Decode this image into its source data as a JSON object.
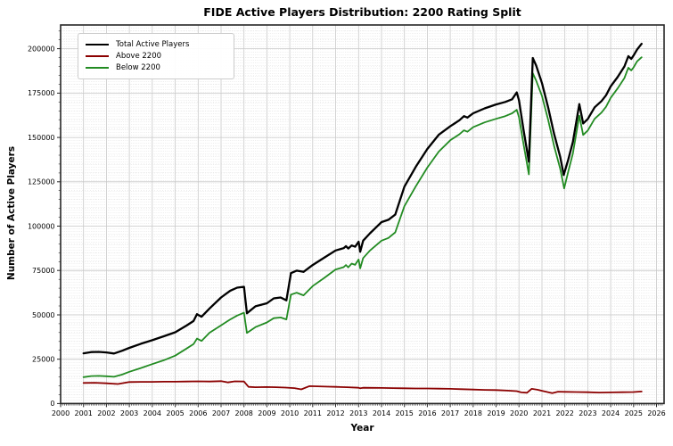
{
  "chart_data": {
    "type": "line",
    "title": "FIDE Active Players Distribution: 2200 Rating Split",
    "xlabel": "Year",
    "ylabel": "Number of Active Players",
    "xlim": [
      2000,
      2026.33
    ],
    "ylim": [
      0,
      213400
    ],
    "grid": {
      "major": true,
      "minor": true
    },
    "legend_position": "upper left",
    "x_tick_labels": [
      "2000",
      "2001",
      "2002",
      "2003",
      "2004",
      "2005",
      "2006",
      "2007",
      "2008",
      "2009",
      "2010",
      "2011",
      "2012",
      "2013",
      "2014",
      "2015",
      "2016",
      "2017",
      "2018",
      "2019",
      "2020",
      "2021",
      "2022",
      "2023",
      "2024",
      "2025",
      "2026"
    ],
    "y_tick_labels": [
      "0",
      "25000",
      "50000",
      "75000",
      "100000",
      "125000",
      "150000",
      "175000",
      "200000"
    ],
    "series": [
      {
        "name": "Total Active Players",
        "color": "#000000",
        "line_width": 2.3,
        "points": [
          [
            2001.0,
            28300
          ],
          [
            2001.33,
            29000
          ],
          [
            2001.67,
            29100
          ],
          [
            2002.0,
            28800
          ],
          [
            2002.33,
            28200
          ],
          [
            2002.67,
            29700
          ],
          [
            2003.0,
            31400
          ],
          [
            2003.5,
            33700
          ],
          [
            2004.0,
            35700
          ],
          [
            2004.5,
            37900
          ],
          [
            2005.0,
            40200
          ],
          [
            2005.5,
            44000
          ],
          [
            2005.8,
            46500
          ],
          [
            2005.95,
            50400
          ],
          [
            2006.15,
            48900
          ],
          [
            2006.5,
            53600
          ],
          [
            2007.0,
            59800
          ],
          [
            2007.4,
            63600
          ],
          [
            2007.7,
            65300
          ],
          [
            2008.0,
            65800
          ],
          [
            2008.13,
            50900
          ],
          [
            2008.5,
            54800
          ],
          [
            2009.0,
            56500
          ],
          [
            2009.3,
            59300
          ],
          [
            2009.6,
            59800
          ],
          [
            2009.85,
            58200
          ],
          [
            2010.05,
            73500
          ],
          [
            2010.3,
            74900
          ],
          [
            2010.6,
            74200
          ],
          [
            2011.0,
            78100
          ],
          [
            2011.5,
            82200
          ],
          [
            2012.0,
            86300
          ],
          [
            2012.35,
            87600
          ],
          [
            2012.45,
            88700
          ],
          [
            2012.55,
            87400
          ],
          [
            2012.7,
            89100
          ],
          [
            2012.85,
            88400
          ],
          [
            2013.0,
            91200
          ],
          [
            2013.07,
            85600
          ],
          [
            2013.2,
            91800
          ],
          [
            2013.5,
            96000
          ],
          [
            2014.0,
            102300
          ],
          [
            2014.3,
            103600
          ],
          [
            2014.6,
            106500
          ],
          [
            2015.0,
            122300
          ],
          [
            2015.5,
            133500
          ],
          [
            2016.0,
            143500
          ],
          [
            2016.5,
            151500
          ],
          [
            2017.0,
            156300
          ],
          [
            2017.4,
            159700
          ],
          [
            2017.6,
            162000
          ],
          [
            2017.75,
            161200
          ],
          [
            2018.0,
            163600
          ],
          [
            2018.5,
            166400
          ],
          [
            2019.0,
            168600
          ],
          [
            2019.4,
            170000
          ],
          [
            2019.7,
            171500
          ],
          [
            2019.9,
            175400
          ],
          [
            2020.0,
            171000
          ],
          [
            2020.2,
            154000
          ],
          [
            2020.43,
            136300
          ],
          [
            2020.6,
            194800
          ],
          [
            2020.75,
            190500
          ],
          [
            2021.0,
            180600
          ],
          [
            2021.27,
            167000
          ],
          [
            2021.53,
            152000
          ],
          [
            2021.8,
            139000
          ],
          [
            2021.95,
            128800
          ],
          [
            2022.15,
            137500
          ],
          [
            2022.35,
            147500
          ],
          [
            2022.63,
            168800
          ],
          [
            2022.8,
            157900
          ],
          [
            2023.0,
            160400
          ],
          [
            2023.3,
            167000
          ],
          [
            2023.6,
            170500
          ],
          [
            2023.8,
            173800
          ],
          [
            2024.0,
            178800
          ],
          [
            2024.3,
            184000
          ],
          [
            2024.6,
            190000
          ],
          [
            2024.77,
            195800
          ],
          [
            2024.9,
            194300
          ],
          [
            2025.0,
            196200
          ],
          [
            2025.15,
            199500
          ],
          [
            2025.35,
            202800
          ]
        ]
      },
      {
        "name": "Above 2200",
        "color": "#8B0000",
        "line_width": 1.8,
        "points": [
          [
            2001.0,
            11600
          ],
          [
            2001.5,
            11700
          ],
          [
            2002.0,
            11400
          ],
          [
            2002.5,
            11000
          ],
          [
            2003.0,
            12100
          ],
          [
            2003.5,
            12200
          ],
          [
            2004.0,
            12200
          ],
          [
            2004.5,
            12300
          ],
          [
            2005.0,
            12300
          ],
          [
            2005.5,
            12400
          ],
          [
            2006.0,
            12500
          ],
          [
            2006.5,
            12400
          ],
          [
            2007.0,
            12600
          ],
          [
            2007.3,
            11900
          ],
          [
            2007.6,
            12500
          ],
          [
            2008.0,
            12400
          ],
          [
            2008.2,
            9400
          ],
          [
            2008.5,
            9200
          ],
          [
            2009.0,
            9300
          ],
          [
            2009.4,
            9200
          ],
          [
            2009.8,
            9000
          ],
          [
            2010.2,
            8700
          ],
          [
            2010.5,
            8000
          ],
          [
            2010.85,
            9800
          ],
          [
            2011.2,
            9700
          ],
          [
            2011.7,
            9500
          ],
          [
            2012.0,
            9400
          ],
          [
            2012.5,
            9200
          ],
          [
            2013.0,
            8900
          ],
          [
            2013.07,
            8600
          ],
          [
            2013.2,
            8900
          ],
          [
            2014.0,
            8800
          ],
          [
            2014.5,
            8700
          ],
          [
            2015.0,
            8600
          ],
          [
            2015.5,
            8500
          ],
          [
            2016.0,
            8500
          ],
          [
            2016.5,
            8400
          ],
          [
            2017.0,
            8300
          ],
          [
            2017.5,
            8100
          ],
          [
            2018.0,
            7900
          ],
          [
            2018.5,
            7700
          ],
          [
            2019.0,
            7600
          ],
          [
            2019.5,
            7300
          ],
          [
            2019.9,
            7000
          ],
          [
            2020.1,
            6300
          ],
          [
            2020.35,
            6100
          ],
          [
            2020.55,
            8300
          ],
          [
            2020.8,
            7800
          ],
          [
            2021.0,
            7200
          ],
          [
            2021.45,
            5900
          ],
          [
            2021.7,
            6700
          ],
          [
            2022.0,
            6600
          ],
          [
            2022.5,
            6500
          ],
          [
            2023.0,
            6400
          ],
          [
            2023.5,
            6200
          ],
          [
            2024.0,
            6300
          ],
          [
            2024.5,
            6400
          ],
          [
            2025.0,
            6500
          ],
          [
            2025.35,
            6800
          ]
        ]
      },
      {
        "name": "Below 2200",
        "color": "#228B22",
        "line_width": 1.8,
        "points": [
          [
            2001.0,
            14900
          ],
          [
            2001.33,
            15500
          ],
          [
            2001.67,
            15600
          ],
          [
            2002.0,
            15400
          ],
          [
            2002.33,
            15100
          ],
          [
            2002.67,
            16300
          ],
          [
            2003.0,
            17900
          ],
          [
            2003.5,
            20000
          ],
          [
            2004.0,
            22200
          ],
          [
            2004.5,
            24400
          ],
          [
            2005.0,
            27000
          ],
          [
            2005.5,
            31000
          ],
          [
            2005.8,
            33500
          ],
          [
            2005.95,
            36600
          ],
          [
            2006.15,
            35300
          ],
          [
            2006.5,
            39900
          ],
          [
            2007.0,
            44100
          ],
          [
            2007.4,
            47400
          ],
          [
            2007.7,
            49600
          ],
          [
            2008.0,
            51200
          ],
          [
            2008.13,
            39800
          ],
          [
            2008.5,
            43100
          ],
          [
            2009.0,
            45700
          ],
          [
            2009.3,
            48100
          ],
          [
            2009.6,
            48500
          ],
          [
            2009.85,
            47400
          ],
          [
            2010.05,
            61400
          ],
          [
            2010.3,
            62500
          ],
          [
            2010.6,
            61000
          ],
          [
            2011.0,
            66200
          ],
          [
            2011.5,
            70800
          ],
          [
            2012.0,
            75600
          ],
          [
            2012.35,
            76900
          ],
          [
            2012.45,
            78100
          ],
          [
            2012.55,
            76800
          ],
          [
            2012.7,
            78900
          ],
          [
            2012.85,
            78200
          ],
          [
            2013.0,
            81200
          ],
          [
            2013.07,
            76200
          ],
          [
            2013.2,
            82000
          ],
          [
            2013.5,
            86300
          ],
          [
            2014.0,
            91800
          ],
          [
            2014.3,
            93300
          ],
          [
            2014.6,
            96500
          ],
          [
            2015.0,
            111300
          ],
          [
            2015.5,
            122500
          ],
          [
            2016.0,
            133000
          ],
          [
            2016.5,
            142000
          ],
          [
            2017.0,
            148400
          ],
          [
            2017.4,
            151800
          ],
          [
            2017.6,
            154000
          ],
          [
            2017.75,
            153200
          ],
          [
            2018.0,
            155800
          ],
          [
            2018.5,
            158500
          ],
          [
            2019.0,
            160500
          ],
          [
            2019.4,
            162000
          ],
          [
            2019.7,
            163600
          ],
          [
            2019.9,
            165600
          ],
          [
            2020.0,
            161500
          ],
          [
            2020.2,
            146000
          ],
          [
            2020.43,
            129200
          ],
          [
            2020.6,
            186200
          ],
          [
            2020.75,
            182000
          ],
          [
            2021.0,
            173400
          ],
          [
            2021.27,
            160000
          ],
          [
            2021.53,
            145200
          ],
          [
            2021.8,
            132300
          ],
          [
            2021.97,
            121300
          ],
          [
            2022.15,
            130800
          ],
          [
            2022.35,
            141000
          ],
          [
            2022.63,
            162300
          ],
          [
            2022.8,
            151400
          ],
          [
            2023.0,
            153900
          ],
          [
            2023.3,
            160500
          ],
          [
            2023.6,
            164000
          ],
          [
            2023.8,
            167300
          ],
          [
            2024.0,
            172300
          ],
          [
            2024.3,
            177600
          ],
          [
            2024.6,
            183500
          ],
          [
            2024.77,
            189300
          ],
          [
            2024.9,
            187800
          ],
          [
            2025.0,
            189500
          ],
          [
            2025.15,
            192900
          ],
          [
            2025.35,
            195200
          ]
        ]
      }
    ]
  }
}
